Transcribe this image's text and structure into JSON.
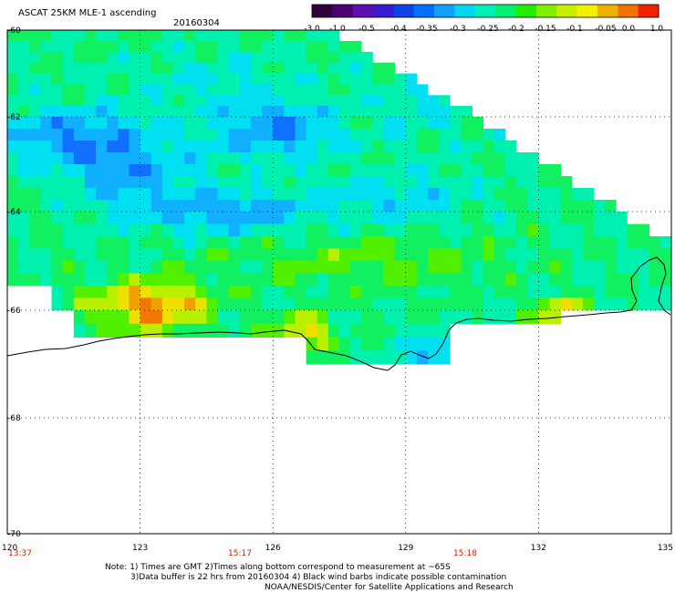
{
  "header": {
    "title": "ASCAT 25KM MLE-1 ascending",
    "date": "20160304"
  },
  "colorbar": {
    "tick_labels": [
      "-3.0",
      "-1.0",
      "-0.5",
      "-0.4",
      "-0.35",
      "-0.3",
      "-0.25",
      "-0.2",
      "-0.15",
      "-0.1",
      "-0.05",
      "0.0",
      "1.0"
    ],
    "colors": [
      "#30003a",
      "#4d0073",
      "#5a10b0",
      "#3a1ad0",
      "#1040e8",
      "#0070ff",
      "#10a0ff",
      "#00d8f0",
      "#00f0b8",
      "#00f070",
      "#20f000",
      "#80f000",
      "#c8f000",
      "#f0f000",
      "#f0b000",
      "#f07000",
      "#f02000"
    ]
  },
  "map": {
    "lat_labels": [
      "-60",
      "-62",
      "-64",
      "-66",
      "-68",
      "-70"
    ],
    "lon_labels": [
      "120",
      "123",
      "126",
      "129",
      "132",
      "135"
    ],
    "time_labels": [
      "13:37",
      "15:17",
      "15:18"
    ]
  },
  "notes": [
    "Note: 1) Times are GMT 2)Times along bottom correspond to measurement at ~65S",
    "3)Data buffer is 22 hrs from 20160304 4) Black wind barbs indicate possible contamination",
    "NOAA/NESDIS/Center for Satellite Applications and Research"
  ]
}
